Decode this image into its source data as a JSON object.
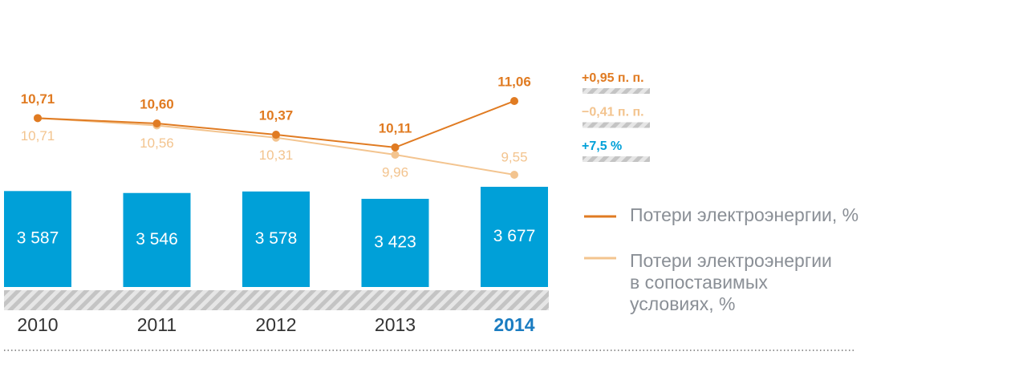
{
  "chart_data": {
    "type": "bar-line",
    "categories": [
      "2010",
      "2011",
      "2012",
      "2013",
      "2014"
    ],
    "bars": {
      "color": "#00a0d8",
      "values": [
        3587,
        3546,
        3578,
        3423,
        3677
      ],
      "value_labels": [
        "3 587",
        "3 546",
        "3 578",
        "3 423",
        "3 677"
      ]
    },
    "series": [
      {
        "name": "Потери электроэнергии, %",
        "color": "#e07b22",
        "values": [
          10.71,
          10.6,
          10.37,
          10.11,
          11.06
        ],
        "value_labels": [
          "10,71",
          "10,60",
          "10,37",
          "10,11",
          "11,06"
        ]
      },
      {
        "name": "Потери электроэнергии\nв сопоставимых\nусловиях, %",
        "color": "#f3c48f",
        "values": [
          10.71,
          10.56,
          10.31,
          9.96,
          9.55
        ],
        "value_labels": [
          "10,71",
          "10,56",
          "10,31",
          "9,96",
          "9,55"
        ]
      }
    ],
    "annotations": [
      {
        "text": "+0,95 п. п.",
        "color": "#e07b22"
      },
      {
        "text": "−0,41 п. п.",
        "color": "#f3c48f"
      },
      {
        "text": "+7,5 %",
        "color": "#00a0d8"
      }
    ]
  }
}
